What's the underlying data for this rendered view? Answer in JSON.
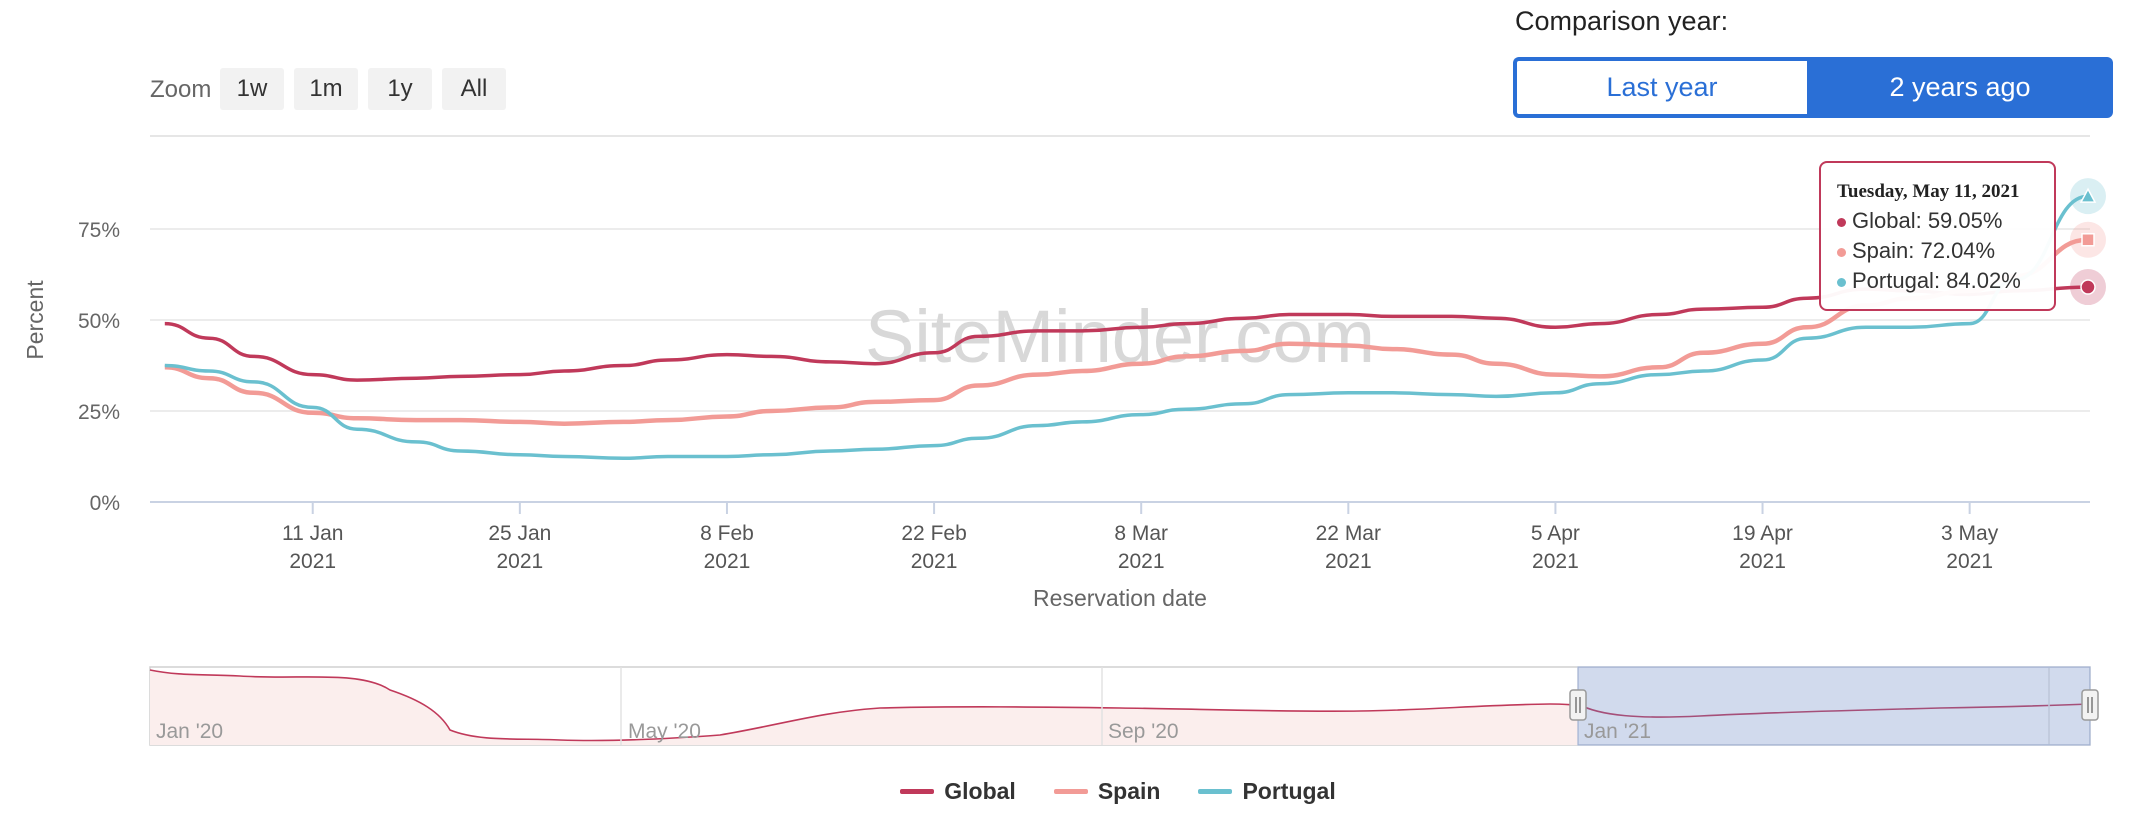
{
  "comparison": {
    "title": "Comparison year:",
    "options": [
      "Last year",
      "2 years ago"
    ],
    "selected": "2 years ago"
  },
  "zoom": {
    "label": "Zoom",
    "buttons": [
      "1w",
      "1m",
      "1y",
      "All"
    ]
  },
  "watermark": "SiteMinder.com",
  "tooltip": {
    "date": "Tuesday, May 11, 2021",
    "rows": [
      "Global: 59.05%",
      "Spain: 72.04%",
      "Portugal: 84.02%"
    ]
  },
  "navigator": {
    "labels": [
      "Jan '20",
      "May '20",
      "Sep '20",
      "Jan '21"
    ]
  },
  "colors": {
    "global": "#c0395a",
    "spain": "#f29b96",
    "portugal": "#6ac0cf",
    "accent": "#2a6fd6"
  },
  "chart_data": {
    "type": "line",
    "title": "",
    "xlabel": "Reservation date",
    "ylabel": "Percent",
    "ylim": [
      0,
      100
    ],
    "yticks": [
      "0%",
      "25%",
      "50%",
      "75%"
    ],
    "xticks": [
      {
        "date": "2021-01-11",
        "label": [
          "11 Jan",
          "2021"
        ]
      },
      {
        "date": "2021-01-25",
        "label": [
          "25 Jan",
          "2021"
        ]
      },
      {
        "date": "2021-02-08",
        "label": [
          "8 Feb",
          "2021"
        ]
      },
      {
        "date": "2021-02-22",
        "label": [
          "22 Feb",
          "2021"
        ]
      },
      {
        "date": "2021-03-08",
        "label": [
          "8 Mar",
          "2021"
        ]
      },
      {
        "date": "2021-03-22",
        "label": [
          "22 Mar",
          "2021"
        ]
      },
      {
        "date": "2021-04-05",
        "label": [
          "5 Apr",
          "2021"
        ]
      },
      {
        "date": "2021-04-19",
        "label": [
          "19 Apr",
          "2021"
        ]
      },
      {
        "date": "2021-05-03",
        "label": [
          "3 May",
          "2021"
        ]
      }
    ],
    "x": [
      "2021-01-01",
      "2021-01-04",
      "2021-01-07",
      "2021-01-11",
      "2021-01-14",
      "2021-01-18",
      "2021-01-21",
      "2021-01-25",
      "2021-01-28",
      "2021-02-01",
      "2021-02-04",
      "2021-02-08",
      "2021-02-11",
      "2021-02-15",
      "2021-02-18",
      "2021-02-22",
      "2021-02-25",
      "2021-03-01",
      "2021-03-04",
      "2021-03-08",
      "2021-03-11",
      "2021-03-15",
      "2021-03-18",
      "2021-03-22",
      "2021-03-25",
      "2021-03-29",
      "2021-04-01",
      "2021-04-05",
      "2021-04-08",
      "2021-04-12",
      "2021-04-15",
      "2021-04-19",
      "2021-04-22",
      "2021-04-26",
      "2021-04-29",
      "2021-05-03",
      "2021-05-06",
      "2021-05-11"
    ],
    "series": [
      {
        "name": "Global",
        "values": [
          49,
          45,
          40,
          35,
          33.5,
          34,
          34.5,
          35,
          36,
          37.5,
          39,
          40.5,
          40,
          38.5,
          38,
          41,
          45.5,
          47,
          47,
          48,
          49,
          50.5,
          51.5,
          51.5,
          51,
          51,
          50.5,
          48,
          49,
          51.5,
          53,
          53.5,
          56,
          58.5,
          58,
          57,
          58,
          59.05
        ]
      },
      {
        "name": "Spain",
        "values": [
          37,
          34,
          30,
          24.5,
          23,
          22.5,
          22.5,
          22,
          21.5,
          22,
          22.5,
          23.5,
          25,
          26,
          27.5,
          28,
          32,
          35,
          36,
          38,
          40,
          41.5,
          43.5,
          43,
          42,
          40.5,
          38,
          35,
          34.5,
          37,
          41,
          43.5,
          48,
          54,
          56,
          58,
          62,
          72.04
        ]
      },
      {
        "name": "Portugal",
        "values": [
          37.5,
          36,
          33,
          26,
          20,
          16.5,
          14,
          13,
          12.5,
          12,
          12.5,
          12.5,
          13,
          14,
          14.5,
          15.5,
          17.5,
          21,
          22,
          24,
          25.5,
          27,
          29.5,
          30,
          30,
          29.5,
          29,
          30,
          32.5,
          35,
          36,
          39,
          45,
          48,
          48,
          49,
          61,
          84.02
        ]
      }
    ]
  }
}
